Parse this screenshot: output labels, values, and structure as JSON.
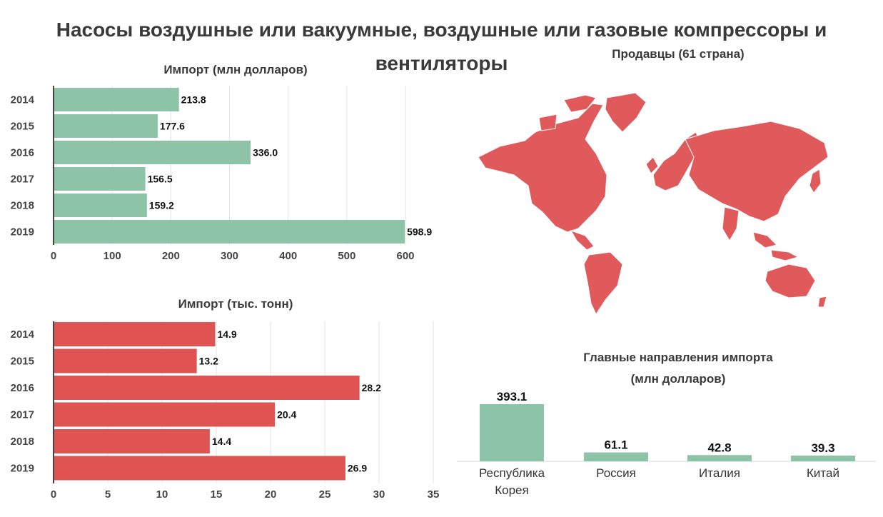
{
  "title": [
    "Насосы воздушные или вакуумные, воздушные или газовые компрессоры и",
    "вентиляторы"
  ],
  "map": {
    "title": "Продавцы (61 страна)",
    "color": "#e05a5b"
  },
  "colors": {
    "green": "#8dc3a7",
    "red": "#df5353"
  },
  "chart_data": [
    {
      "type": "bar",
      "orientation": "horizontal",
      "title": "Импорт (млн долларов)",
      "categories": [
        "2014",
        "2015",
        "2016",
        "2017",
        "2018",
        "2019"
      ],
      "values": [
        213.8,
        177.6,
        336.0,
        156.5,
        159.2,
        598.9
      ],
      "value_labels": [
        "213.8",
        "177.6",
        "336.0",
        "156.5",
        "159.2",
        "598.9"
      ],
      "xlim": [
        0,
        600
      ],
      "xticks": [
        "0",
        "100",
        "200",
        "300",
        "400",
        "500",
        "600"
      ],
      "grid": true
    },
    {
      "type": "bar",
      "orientation": "horizontal",
      "title": "Импорт (тыс. тонн)",
      "categories": [
        "2014",
        "2015",
        "2016",
        "2017",
        "2018",
        "2019"
      ],
      "values": [
        14.9,
        13.2,
        28.2,
        20.4,
        14.4,
        26.9
      ],
      "value_labels": [
        "14.9",
        "13.2",
        "28.2",
        "20.4",
        "14.4",
        "26.9"
      ],
      "xlim": [
        0,
        35
      ],
      "xticks": [
        "0",
        "5",
        "10",
        "15",
        "20",
        "25",
        "30",
        "35"
      ],
      "grid": true
    },
    {
      "type": "bar",
      "title": [
        "Главные направления импорта",
        "(млн долларов)"
      ],
      "categories": [
        [
          "Республика",
          "Корея"
        ],
        [
          "Россия"
        ],
        [
          "Италия"
        ],
        [
          "Китай"
        ]
      ],
      "values": [
        393.1,
        61.1,
        42.8,
        39.3
      ],
      "value_labels": [
        "393.1",
        "61.1",
        "42.8",
        "39.3"
      ]
    }
  ]
}
